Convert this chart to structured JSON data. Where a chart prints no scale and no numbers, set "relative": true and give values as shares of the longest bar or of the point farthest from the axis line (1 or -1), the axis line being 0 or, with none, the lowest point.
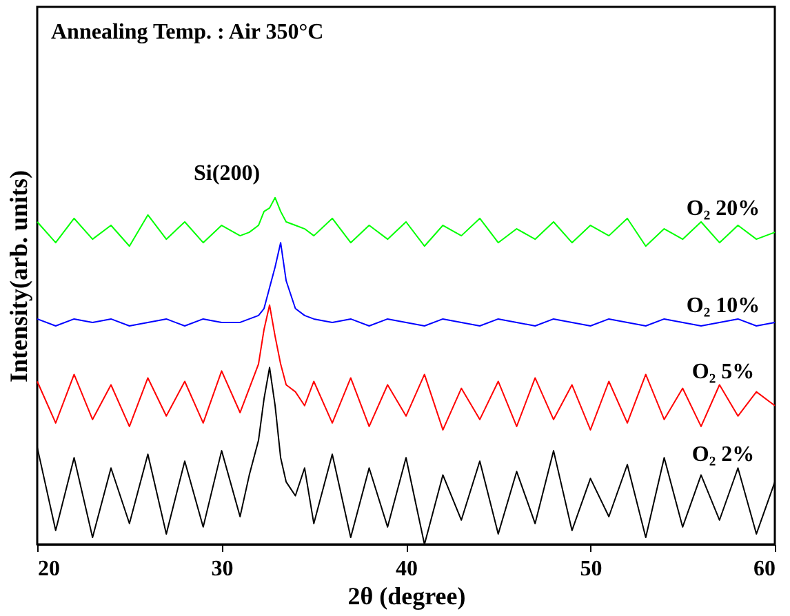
{
  "chart_data": {
    "type": "line",
    "relative": true,
    "xlabel": "2θ (degree)",
    "ylabel": "Intensity(arb. units)",
    "xlim": [
      20,
      60
    ],
    "xticks": [
      20,
      30,
      40,
      50,
      60
    ],
    "grid": false,
    "legend": false,
    "marker": "none",
    "line_style": "solid",
    "annotations": [
      "Annealing Temp. : Air 350°C",
      {
        "text": "Si(200)",
        "x": 32.9,
        "y": 1.0
      }
    ],
    "x": [
      20,
      21,
      22,
      23,
      24,
      25,
      26,
      27,
      28,
      29,
      30,
      31,
      31.5,
      32,
      32.3,
      32.6,
      32.9,
      33.2,
      33.5,
      34,
      34.5,
      35,
      36,
      37,
      38,
      39,
      40,
      41,
      42,
      43,
      44,
      45,
      46,
      47,
      48,
      49,
      50,
      51,
      52,
      53,
      54,
      55,
      56,
      57,
      58,
      59,
      60
    ],
    "series": [
      {
        "name": "O₂ 20%",
        "color": "#00ff00",
        "values": [
          0.93,
          0.87,
          0.94,
          0.88,
          0.92,
          0.86,
          0.95,
          0.88,
          0.93,
          0.87,
          0.92,
          0.89,
          0.9,
          0.92,
          0.96,
          0.97,
          1.0,
          0.96,
          0.93,
          0.92,
          0.91,
          0.89,
          0.94,
          0.87,
          0.92,
          0.88,
          0.93,
          0.86,
          0.92,
          0.89,
          0.94,
          0.87,
          0.91,
          0.88,
          0.93,
          0.87,
          0.92,
          0.89,
          0.94,
          0.86,
          0.91,
          0.88,
          0.93,
          0.87,
          0.92,
          0.88,
          0.9
        ]
      },
      {
        "name": "O₂ 10%",
        "color": "#0000ff",
        "values": [
          0.65,
          0.63,
          0.65,
          0.64,
          0.65,
          0.63,
          0.64,
          0.65,
          0.63,
          0.65,
          0.64,
          0.64,
          0.65,
          0.66,
          0.68,
          0.74,
          0.8,
          0.87,
          0.76,
          0.68,
          0.66,
          0.65,
          0.64,
          0.65,
          0.63,
          0.65,
          0.64,
          0.63,
          0.65,
          0.64,
          0.63,
          0.65,
          0.64,
          0.63,
          0.65,
          0.64,
          0.63,
          0.65,
          0.64,
          0.63,
          0.65,
          0.64,
          0.63,
          0.64,
          0.65,
          0.63,
          0.64
        ]
      },
      {
        "name": "O₂ 5%",
        "color": "#ff0000",
        "values": [
          0.47,
          0.35,
          0.49,
          0.36,
          0.46,
          0.34,
          0.48,
          0.37,
          0.47,
          0.35,
          0.5,
          0.38,
          0.45,
          0.52,
          0.62,
          0.69,
          0.6,
          0.52,
          0.46,
          0.44,
          0.4,
          0.47,
          0.35,
          0.48,
          0.34,
          0.46,
          0.37,
          0.49,
          0.33,
          0.45,
          0.36,
          0.47,
          0.34,
          0.48,
          0.36,
          0.46,
          0.33,
          0.47,
          0.35,
          0.49,
          0.36,
          0.45,
          0.34,
          0.46,
          0.37,
          0.44,
          0.4
        ]
      },
      {
        "name": "O₂ 2%",
        "color": "#000000",
        "values": [
          0.28,
          0.04,
          0.25,
          0.02,
          0.22,
          0.06,
          0.26,
          0.03,
          0.24,
          0.05,
          0.27,
          0.08,
          0.2,
          0.3,
          0.42,
          0.51,
          0.4,
          0.25,
          0.18,
          0.14,
          0.22,
          0.06,
          0.26,
          0.02,
          0.22,
          0.05,
          0.25,
          0.0,
          0.2,
          0.07,
          0.24,
          0.03,
          0.21,
          0.06,
          0.27,
          0.04,
          0.19,
          0.08,
          0.23,
          0.02,
          0.25,
          0.05,
          0.2,
          0.07,
          0.22,
          0.03,
          0.18
        ]
      }
    ]
  }
}
